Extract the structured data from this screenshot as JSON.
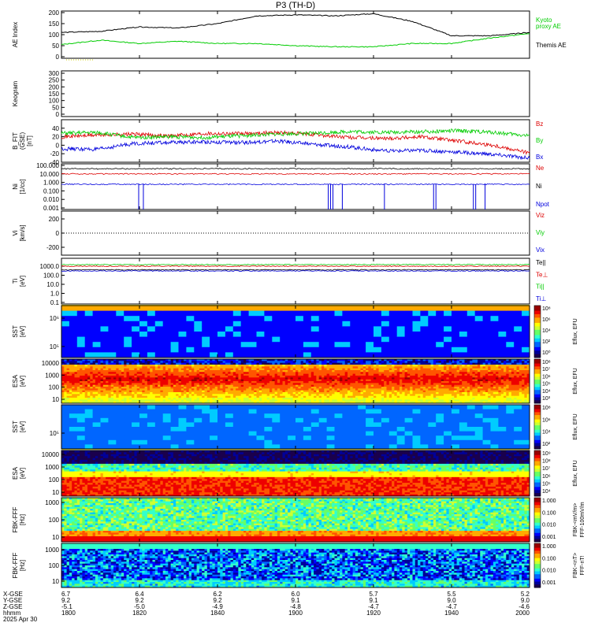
{
  "title": "P3 (TH-D)",
  "footer": {
    "row_labels": [
      "X-GSE",
      "Y-GSE",
      "Z-GSE",
      "hhmm",
      "2025 Apr 30"
    ],
    "columns": [
      {
        "x": "6.7",
        "y": "9.2",
        "z": "-5.1",
        "t": "1800"
      },
      {
        "x": "6.4",
        "y": "9.2",
        "z": "-5.0",
        "t": "1820"
      },
      {
        "x": "6.2",
        "y": "9.2",
        "z": "-4.9",
        "t": "1840"
      },
      {
        "x": "6.0",
        "y": "9.1",
        "z": "-4.8",
        "t": "1900"
      },
      {
        "x": "5.7",
        "y": "9.1",
        "z": "-4.7",
        "t": "1920"
      },
      {
        "x": "5.5",
        "y": "9.0",
        "z": "-4.7",
        "t": "1940"
      },
      {
        "x": "5.2",
        "y": "9.0",
        "z": "-4.6",
        "t": "2000"
      }
    ]
  },
  "chart_data": [
    {
      "type": "line",
      "panel": "ae",
      "ylabel": "AE Index",
      "ylim": [
        0,
        200
      ],
      "yticks": [
        "200",
        "150",
        "100",
        "50",
        "0"
      ],
      "series": [
        {
          "name": "Kyoto\nproxy AE",
          "color": "#00cc00",
          "x": [
            0,
            10,
            20,
            30,
            40,
            50,
            60,
            70,
            80,
            90,
            100,
            110,
            120
          ],
          "values": [
            55,
            75,
            60,
            70,
            60,
            60,
            50,
            45,
            45,
            60,
            60,
            85,
            105
          ]
        },
        {
          "name": "Themis AE",
          "color": "#000000",
          "x": [
            0,
            10,
            20,
            30,
            40,
            50,
            60,
            70,
            80,
            90,
            100,
            110,
            120
          ],
          "values": [
            110,
            115,
            135,
            130,
            150,
            185,
            190,
            185,
            195,
            160,
            95,
            95,
            110
          ]
        }
      ]
    },
    {
      "type": "line",
      "panel": "keogram",
      "ylabel": "Keogram",
      "yticks": [
        "300",
        "250",
        "200",
        "150",
        "100",
        "50",
        "0"
      ]
    },
    {
      "type": "line",
      "panel": "bfield",
      "ylabel": "B_FIT\n(GSE)\n[nT]",
      "ylim": [
        -40,
        60
      ],
      "yticks": [
        "40",
        "20",
        "0",
        "-20",
        "-40"
      ],
      "series": [
        {
          "name": "Bz",
          "color": "#dd0000",
          "values": [
            20,
            24,
            26,
            22,
            28,
            27,
            30,
            25,
            18,
            16,
            20,
            10,
            0,
            -18
          ]
        },
        {
          "name": "By",
          "color": "#00cc00",
          "values": [
            28,
            30,
            18,
            20,
            18,
            22,
            26,
            28,
            32,
            30,
            32,
            34,
            30,
            22
          ]
        },
        {
          "name": "Bx",
          "color": "#0000dd",
          "values": [
            -8,
            -10,
            4,
            6,
            8,
            6,
            10,
            2,
            -4,
            -14,
            -12,
            -16,
            -22,
            -30
          ]
        }
      ]
    },
    {
      "type": "line",
      "panel": "density",
      "ylabel": "Ni\n[1/cc]",
      "ylim": [
        0.001,
        100
      ],
      "scale": "log",
      "yticks": [
        "100.000",
        "10.000",
        "1.000",
        "0.100",
        "0.010",
        "0.001"
      ],
      "series": [
        {
          "name": "Ne",
          "color": "#dd0000",
          "value": 10
        },
        {
          "name": "Ni",
          "color": "#000000",
          "value": 40
        },
        {
          "name": "Npot",
          "color": "#0000dd",
          "value": 0.6
        }
      ]
    },
    {
      "type": "line",
      "panel": "velocity",
      "ylabel": "Vi\n[km/s]",
      "yticks": [
        "200",
        "0",
        "-200"
      ],
      "series": [
        {
          "name": "Viz",
          "color": "#dd0000"
        },
        {
          "name": "Viy",
          "color": "#00cc00"
        },
        {
          "name": "Vix",
          "color": "#0000dd"
        }
      ]
    },
    {
      "type": "line",
      "panel": "temperature",
      "ylabel": "Ti\n[eV]",
      "ylim": [
        0.1,
        5000
      ],
      "scale": "log",
      "yticks": [
        "1000.0",
        "100.0",
        "10.0",
        "1.0",
        "0.1"
      ],
      "series": [
        {
          "name": "Te||",
          "color": "#000000",
          "value": 400
        },
        {
          "name": "Te⊥",
          "color": "#dd0000",
          "value": 1000
        },
        {
          "name": "Ti||",
          "color": "#00cc00",
          "value": 1500
        },
        {
          "name": "Ti⊥",
          "color": "#0000dd",
          "value": 300
        }
      ]
    },
    {
      "type": "heatmap",
      "panel": "sst_ion",
      "ylabel": "SST\n[eV]",
      "yticks": [
        "10⁶",
        "10⁵"
      ],
      "colorbar": {
        "title": "Eflux, EFU",
        "ticks": [
          "10⁸",
          "10⁶",
          "10⁴",
          "10²",
          "10⁰"
        ]
      }
    },
    {
      "type": "heatmap",
      "panel": "esa_ion",
      "ylabel": "ESA\n[eV]",
      "yticks": [
        "10000",
        "1000",
        "100",
        "10"
      ],
      "colorbar": {
        "title": "Eflux, EFU",
        "ticks": [
          "10⁸",
          "10⁷",
          "10⁶",
          "10⁵",
          "10⁴",
          "10³"
        ]
      }
    },
    {
      "type": "heatmap",
      "panel": "sst_elec",
      "ylabel": "SST\n[eV]",
      "yticks": [
        "10⁵"
      ],
      "colorbar": {
        "title": "Eflux, EFU",
        "ticks": [
          "10⁸",
          "10⁶",
          "10⁴",
          "10²"
        ]
      }
    },
    {
      "type": "heatmap",
      "panel": "esa_elec",
      "ylabel": "ESA\n[eV]",
      "yticks": [
        "10000",
        "1000",
        "100",
        "10"
      ],
      "colorbar": {
        "title": "Eflux, EFU",
        "ticks": [
          "10⁹",
          "10⁸",
          "10⁷",
          "10⁶",
          "10⁵",
          "10⁴"
        ]
      }
    },
    {
      "type": "heatmap",
      "panel": "fbk_e",
      "ylabel": "FBK-FFF\n[Hz]",
      "yticks": [
        "1000",
        "100",
        "10"
      ],
      "colorbar": {
        "title": "FBK-<mV/m>\nFFF-100mV/m",
        "ticks": [
          "1.000",
          "0.100",
          "0.010",
          "0.001"
        ]
      }
    },
    {
      "type": "heatmap",
      "panel": "fbk_b",
      "ylabel": "FBK-FFF\n[Hz]",
      "yticks": [
        "1000",
        "100",
        "10"
      ],
      "colorbar": {
        "title": "FBK-<nT>\nFFF-nT!",
        "ticks": [
          "1.000",
          "0.100",
          "0.010",
          "0.001"
        ]
      }
    }
  ]
}
